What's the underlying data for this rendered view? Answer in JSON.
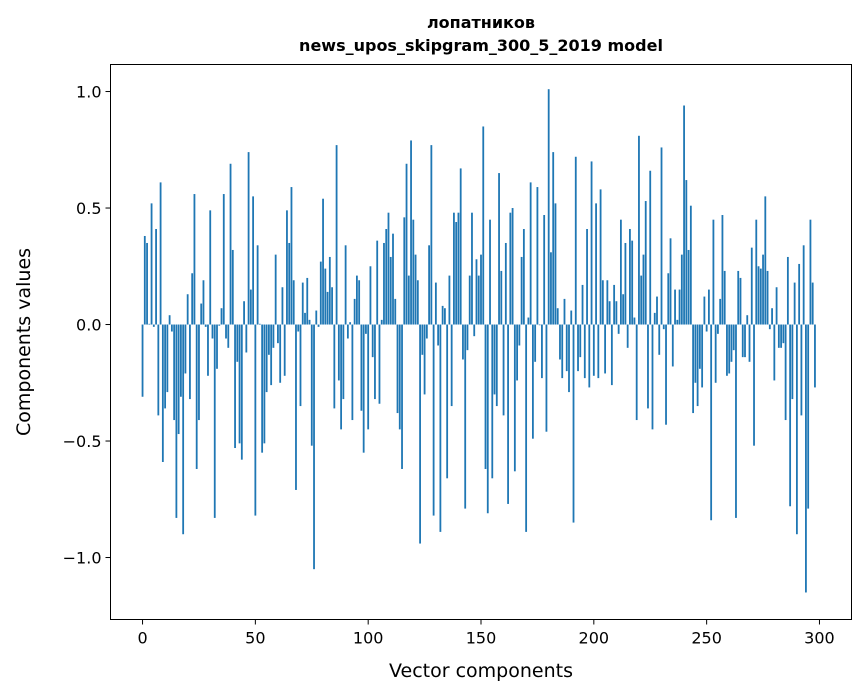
{
  "chart_data": {
    "type": "bar",
    "title": [
      "лопатников",
      "news_upos_skipgram_300_5_2019 model"
    ],
    "xlabel": "Vector components",
    "ylabel": "Components values",
    "xlim": [
      -14.2,
      314.2
    ],
    "ylim": [
      -1.266,
      1.116
    ],
    "xticks": [
      0,
      50,
      100,
      150,
      200,
      250,
      300
    ],
    "xtick_labels": [
      "0",
      "50",
      "100",
      "150",
      "200",
      "250",
      "300"
    ],
    "yticks": [
      -1.0,
      -0.5,
      0.0,
      0.5,
      1.0
    ],
    "ytick_labels": [
      "−1.0",
      "−0.5",
      "0.0",
      "0.5",
      "1.0"
    ],
    "grid": false,
    "bar_color": "#1f77b4",
    "values": [
      -0.31,
      0.38,
      0.35,
      0.003,
      0.52,
      -0.01,
      0.41,
      -0.39,
      0.61,
      -0.59,
      -0.36,
      -0.29,
      0.04,
      -0.03,
      -0.41,
      -0.83,
      -0.47,
      -0.31,
      -0.9,
      -0.21,
      0.13,
      -0.32,
      0.22,
      0.56,
      -0.62,
      -0.41,
      0.09,
      0.19,
      -0.01,
      -0.22,
      0.49,
      -0.06,
      -0.83,
      -0.19,
      -0.005,
      0.07,
      0.56,
      -0.06,
      -0.1,
      0.69,
      0.32,
      -0.53,
      -0.16,
      -0.51,
      -0.58,
      0.1,
      -0.12,
      0.74,
      0.15,
      0.55,
      -0.82,
      0.34,
      0.003,
      -0.55,
      -0.51,
      -0.29,
      -0.13,
      -0.26,
      -0.1,
      0.3,
      -0.08,
      -0.25,
      0.16,
      -0.22,
      0.49,
      0.35,
      0.59,
      0.19,
      -0.71,
      -0.03,
      -0.35,
      0.18,
      0.05,
      0.2,
      0.02,
      -0.52,
      -1.05,
      0.06,
      -0.01,
      0.27,
      0.54,
      0.24,
      0.14,
      0.29,
      0.16,
      -0.36,
      0.77,
      -0.24,
      -0.45,
      -0.32,
      0.34,
      -0.06,
      0.01,
      -0.41,
      0.11,
      0.21,
      0.19,
      -0.37,
      -0.55,
      -0.04,
      -0.45,
      0.25,
      -0.14,
      -0.32,
      0.36,
      -0.34,
      0.02,
      0.35,
      0.41,
      0.48,
      0.29,
      0.39,
      0.11,
      -0.38,
      -0.45,
      -0.62,
      0.46,
      0.69,
      0.21,
      0.79,
      0.45,
      0.3,
      0.19,
      -0.94,
      -0.13,
      -0.3,
      -0.06,
      0.34,
      0.77,
      -0.82,
      0.18,
      -0.09,
      -0.89,
      0.08,
      0.07,
      -0.66,
      0.21,
      -0.35,
      0.48,
      0.44,
      0.48,
      0.67,
      -0.15,
      -0.79,
      -0.11,
      0.21,
      0.48,
      -0.05,
      0.28,
      0.21,
      0.3,
      0.85,
      -0.62,
      -0.81,
      0.45,
      -0.66,
      -0.3,
      -0.35,
      0.65,
      0.23,
      -0.39,
      0.35,
      -0.77,
      0.48,
      0.5,
      -0.63,
      -0.24,
      -0.09,
      0.29,
      0.41,
      -0.89,
      0.03,
      0.61,
      -0.49,
      -0.16,
      0.59,
      -0.003,
      -0.23,
      0.47,
      -0.46,
      1.01,
      0.31,
      0.74,
      0.52,
      0.07,
      -0.15,
      -0.23,
      0.11,
      -0.2,
      -0.29,
      0.06,
      -0.85,
      0.72,
      -0.2,
      -0.14,
      0.17,
      -0.23,
      0.41,
      -0.27,
      0.7,
      -0.22,
      0.52,
      -0.23,
      0.58,
      0.19,
      -0.21,
      0.19,
      0.1,
      -0.26,
      0.17,
      0.1,
      -0.04,
      0.45,
      0.13,
      0.35,
      -0.1,
      0.41,
      0.36,
      0.03,
      -0.41,
      0.81,
      0.21,
      0.3,
      0.53,
      -0.36,
      0.66,
      -0.45,
      0.05,
      0.12,
      -0.13,
      0.76,
      -0.02,
      -0.43,
      0.22,
      0.37,
      -0.18,
      0.15,
      0.02,
      0.15,
      0.3,
      0.94,
      0.62,
      0.32,
      0.51,
      -0.38,
      -0.25,
      -0.35,
      -0.19,
      -0.27,
      0.12,
      -0.03,
      0.15,
      -0.84,
      0.45,
      -0.25,
      -0.04,
      0.11,
      0.47,
      0.23,
      -0.22,
      -0.21,
      -0.16,
      -0.11,
      -0.83,
      0.23,
      0.2,
      -0.14,
      -0.14,
      0.04,
      -0.16,
      0.33,
      -0.52,
      0.45,
      0.25,
      0.24,
      0.3,
      0.55,
      0.23,
      -0.02,
      0.07,
      -0.24,
      0.16,
      -0.1,
      -0.1,
      -0.08,
      -0.41,
      0.29,
      -0.78,
      -0.32,
      0.18,
      -0.9,
      0.26,
      -0.39,
      0.34,
      -1.15,
      -0.79,
      0.45,
      0.18,
      -0.27
    ]
  }
}
